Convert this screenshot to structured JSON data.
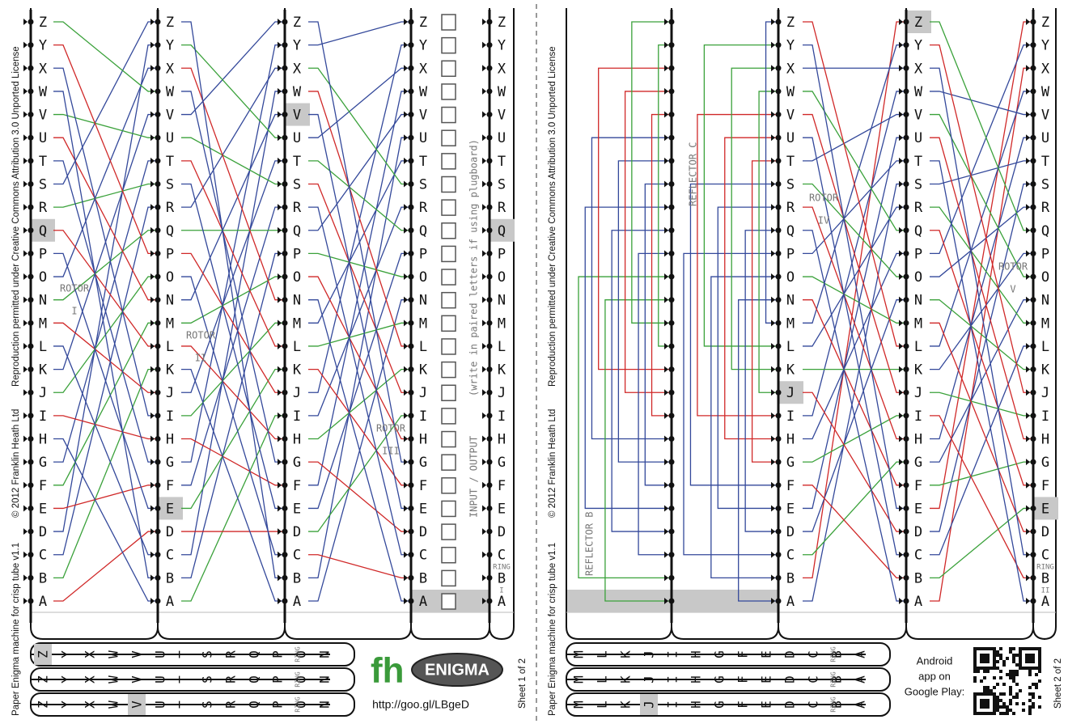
{
  "alphabet": [
    "A",
    "B",
    "C",
    "D",
    "E",
    "F",
    "G",
    "H",
    "I",
    "J",
    "K",
    "L",
    "M",
    "N",
    "O",
    "P",
    "Q",
    "R",
    "S",
    "T",
    "U",
    "V",
    "W",
    "X",
    "Y",
    "Z"
  ],
  "margin": {
    "title": "Paper Enigma machine for crisp tube  v1.1",
    "copyright": "© 2012 Franklin Heath Ltd",
    "license": "Reproduction permitted under Creative Commons Attribution 3.0 Unported License"
  },
  "sheet1": {
    "rotors": [
      {
        "label": "ROTOR",
        "numeral": "I"
      },
      {
        "label": "ROTOR",
        "numeral": "II"
      },
      {
        "label": "ROTOR",
        "numeral": "III"
      }
    ],
    "io_label": "INPUT / OUTPUT",
    "io_note": "(write in paired letters if using plugboard)",
    "ring_label": "RING",
    "ring_numeral": "I",
    "logo_mark": "fh",
    "logo": "ENIGMA",
    "url": "http://goo.gl/LBgeD",
    "sheet_label": "Sheet 1 of 2"
  },
  "sheet2": {
    "reflectors": [
      "REFLECTOR B",
      "REFLECTOR C"
    ],
    "rotors": [
      {
        "label": "ROTOR",
        "numeral": "IV"
      },
      {
        "label": "ROTOR",
        "numeral": "V"
      }
    ],
    "ring_label": "RING",
    "ring_numeral": "II",
    "android_note": [
      "Android",
      "app on",
      "Google Play:"
    ],
    "sheet_label": "Sheet 2 of 2"
  }
}
